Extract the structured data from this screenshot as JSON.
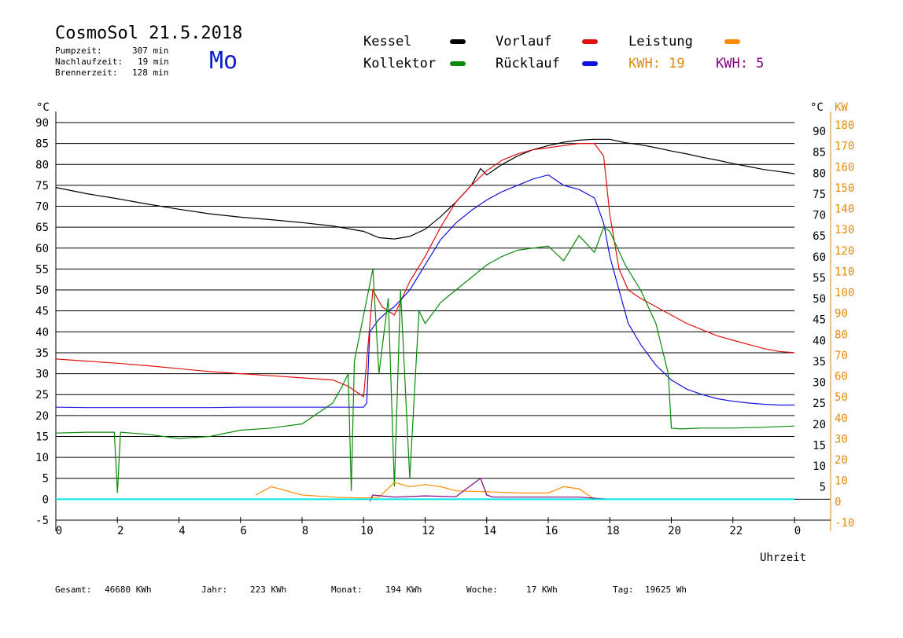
{
  "header": {
    "title": "CosmoSol 21.5.2018",
    "day": "Mo",
    "stats": [
      {
        "label": "Pumpzeit:",
        "value": "307 min"
      },
      {
        "label": "Nachlaufzeit:",
        "value": "19 min"
      },
      {
        "label": "Brennerzeit:",
        "value": "128 min"
      }
    ]
  },
  "legend": {
    "kessel": {
      "label": "Kessel",
      "color": "#000000"
    },
    "vorlauf": {
      "label": "Vorlauf",
      "color": "#e01010"
    },
    "leistung": {
      "label": "Leistung",
      "color": "#ff8c00"
    },
    "kollektor": {
      "label": "Kollektor",
      "color": "#0a8a0a"
    },
    "ruecklauf": {
      "label": "Rücklauf",
      "color": "#1010e0"
    },
    "kwh1": {
      "label": "KWH: 19",
      "color": "#e08a10"
    },
    "kwh2": {
      "label": "KWH: 5",
      "color": "#800080"
    }
  },
  "footer": [
    {
      "label": "Gesamt:",
      "value": "46680 KWh"
    },
    {
      "label": "Jahr:",
      "value": "223 KWh"
    },
    {
      "label": "Monat:",
      "value": "194 KWh"
    },
    {
      "label": "Woche:",
      "value": "17 KWh"
    },
    {
      "label": "Tag:",
      "value": "19625 Wh"
    }
  ],
  "chart_data": {
    "type": "line",
    "xlabel": "Uhrzeit",
    "ylabel_left": "°C",
    "ylabel_right_1": "°C",
    "ylabel_right_2": "KW",
    "xlim": [
      0,
      24
    ],
    "ylim": [
      -5,
      90
    ],
    "ylim_right_kw": [
      -10,
      180
    ],
    "x_ticks": [
      "0",
      "2",
      "4",
      "6",
      "8",
      "10",
      "12",
      "14",
      "16",
      "18",
      "20",
      "22",
      "0"
    ],
    "y_ticks_left": [
      "90",
      "85",
      "80",
      "75",
      "70",
      "65",
      "60",
      "55",
      "50",
      "45",
      "40",
      "35",
      "30",
      "25",
      "20",
      "15",
      "10",
      "5",
      "0",
      "-5"
    ],
    "y_ticks_right": [
      "90",
      "85",
      "80",
      "75",
      "70",
      "65",
      "60",
      "55",
      "50",
      "45",
      "40",
      "35",
      "30",
      "25",
      "20",
      "15",
      "10",
      "5"
    ],
    "y_ticks_kw": [
      "180",
      "170",
      "160",
      "150",
      "140",
      "130",
      "120",
      "110",
      "100",
      "90",
      "80",
      "70",
      "60",
      "50",
      "40",
      "30",
      "20",
      "10",
      "0",
      "-10"
    ],
    "grid": true,
    "series": [
      {
        "name": "Kessel",
        "color": "#000000",
        "x": [
          0,
          1,
          2,
          3,
          4,
          5,
          6,
          7,
          8,
          9,
          10,
          10.5,
          11,
          11.5,
          12,
          12.5,
          13,
          13.5,
          13.8,
          14,
          14.5,
          15,
          15.5,
          16,
          16.5,
          17,
          17.5,
          18,
          18.5,
          19,
          19.5,
          20,
          20.5,
          21,
          21.5,
          22,
          22.5,
          23,
          23.5,
          24
        ],
        "y": [
          74.5,
          73,
          71.8,
          70.5,
          69.3,
          68.2,
          67.4,
          66.8,
          66.1,
          65.3,
          64,
          62.5,
          62.2,
          62.8,
          64.5,
          67.5,
          71,
          75,
          79,
          77.5,
          80,
          82,
          83.5,
          84.5,
          85.3,
          85.8,
          86,
          86,
          85.2,
          84.7,
          84,
          83.2,
          82.5,
          81.7,
          81,
          80.2,
          79.5,
          78.8,
          78.3,
          77.8
        ]
      },
      {
        "name": "Vorlauf",
        "color": "#e01010",
        "x": [
          0,
          1,
          2,
          3,
          4,
          5,
          6,
          7,
          8,
          9,
          9.5,
          10,
          10.3,
          10.6,
          11,
          11.5,
          12,
          12.5,
          13,
          13.5,
          14,
          14.5,
          15,
          15.5,
          16,
          16.5,
          17,
          17.5,
          17.8,
          18,
          18.3,
          18.6,
          19,
          19.5,
          20,
          20.5,
          21,
          21.5,
          22,
          22.5,
          23,
          23.5,
          24
        ],
        "y": [
          33.5,
          33,
          32.5,
          31.9,
          31.2,
          30.5,
          30,
          29.5,
          29,
          28.5,
          27,
          24.5,
          50,
          46,
          44,
          52,
          58,
          65,
          71,
          75,
          78.5,
          81,
          82.5,
          83.5,
          84,
          84.5,
          85,
          85,
          82,
          68,
          55,
          50,
          48,
          46,
          44,
          42,
          40.5,
          39,
          38,
          37,
          36,
          35.3,
          35
        ]
      },
      {
        "name": "Rücklauf",
        "color": "#1010e0",
        "x": [
          0,
          1,
          2,
          3,
          4,
          5,
          6,
          7,
          8,
          9,
          10,
          10.1,
          10.2,
          10.5,
          10.8,
          11,
          11.5,
          12,
          12.5,
          13,
          13.5,
          14,
          14.5,
          15,
          15.5,
          16,
          16.5,
          17,
          17.5,
          17.8,
          18,
          18.3,
          18.6,
          19,
          19.5,
          20,
          20.5,
          21,
          21.5,
          22,
          22.5,
          23,
          23.5,
          24
        ],
        "y": [
          22,
          21.9,
          21.9,
          21.9,
          21.9,
          21.9,
          22,
          22,
          22,
          22,
          22,
          23,
          40,
          43,
          45,
          46,
          50,
          56,
          62,
          66,
          69,
          71.5,
          73.5,
          75,
          76.5,
          77.5,
          75,
          74,
          72,
          66,
          58,
          50,
          42,
          37,
          32,
          28.5,
          26.3,
          25,
          24,
          23.4,
          23,
          22.7,
          22.5,
          22.5
        ]
      },
      {
        "name": "Kollektor",
        "color": "#0a8a0a",
        "x": [
          0,
          1,
          1.9,
          2,
          2.1,
          3,
          4,
          5,
          6,
          7,
          8,
          9,
          9.3,
          9.5,
          9.6,
          9.7,
          10,
          10.3,
          10.5,
          10.8,
          11,
          11.2,
          11.5,
          11.8,
          12,
          12.5,
          13,
          13.5,
          14,
          14.5,
          15,
          15.5,
          16,
          16.5,
          17,
          17.5,
          17.8,
          18,
          18.5,
          19,
          19.5,
          19.9,
          20,
          20.3,
          21,
          22,
          23,
          24
        ],
        "y": [
          15.8,
          16,
          16,
          1.5,
          16,
          15.5,
          14.5,
          15,
          16.5,
          17,
          18,
          23,
          27,
          30,
          2,
          33,
          44,
          55,
          30,
          48,
          3,
          50,
          5,
          45,
          42,
          47,
          50,
          53,
          56,
          58,
          59.5,
          60,
          60.5,
          57,
          63,
          59,
          65,
          64,
          56,
          50,
          42,
          30,
          17,
          16.8,
          17,
          17,
          17.2,
          17.5
        ]
      },
      {
        "name": "Leistung",
        "color": "#ff8c00",
        "x": [
          6.5,
          7,
          7.5,
          8,
          9,
          10,
          10.5,
          11,
          11.5,
          12,
          12.5,
          13,
          14,
          15,
          16,
          16.5,
          17,
          17.5,
          18,
          20,
          24
        ],
        "y": [
          1,
          3,
          2,
          1,
          0.5,
          0.3,
          0.5,
          4,
          3,
          3.5,
          3,
          2,
          1.8,
          1.5,
          1.5,
          3,
          2.5,
          0,
          0,
          0,
          0
        ]
      },
      {
        "name": "KWH: 5",
        "color": "#800080",
        "x": [
          10.2,
          10.3,
          11,
          12,
          13,
          13.8,
          14,
          14.2,
          16,
          17,
          18,
          24
        ],
        "y": [
          -0.5,
          1,
          0.5,
          0.8,
          0.6,
          5,
          1,
          0.5,
          0.5,
          0.5,
          0,
          0
        ]
      },
      {
        "name": "",
        "color": "#00e5e5",
        "x": [
          0,
          24
        ],
        "y": [
          0,
          0
        ]
      }
    ]
  }
}
